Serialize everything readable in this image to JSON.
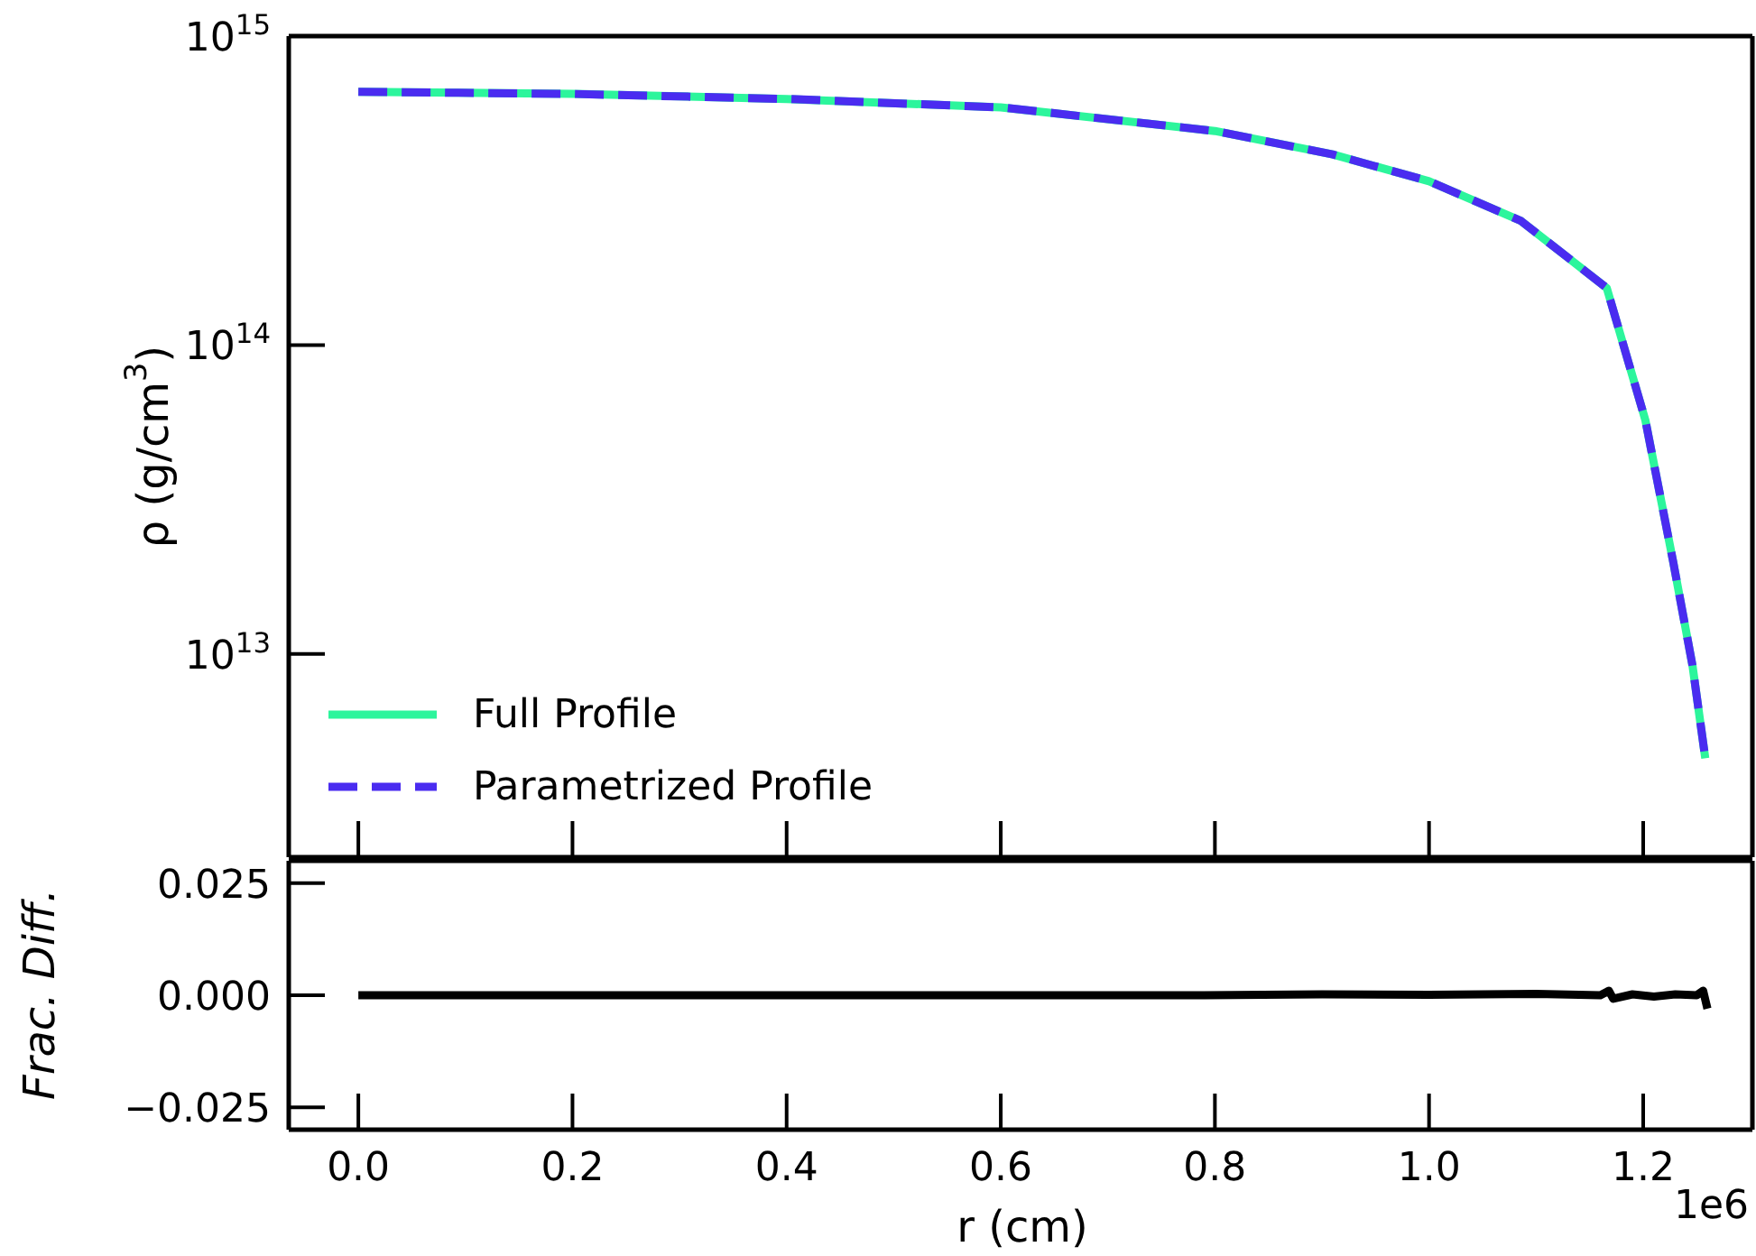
{
  "chart_data": [
    {
      "type": "line",
      "ylabel": "ρ (g/cm$^{3}$)",
      "legend": "bottom left",
      "log": "y",
      "tick_labels": "y",
      "x": [
        0,
        0.2,
        0.4,
        0.6,
        0.8,
        0.91,
        1.0,
        1.086,
        1.166,
        1.202,
        1.228,
        1.246,
        1.258
      ],
      "series": [
        {
          "name": "Full Profile",
          "color": "#2cf59c",
          "line_style": "solid",
          "values": [
            660000000000000.0,
            650000000000000.0,
            626000000000000.0,
            588000000000000.0,
            493000000000000.0,
            414000000000000.0,
            339000000000000.0,
            252000000000000.0,
            153000000000000.0,
            57200000000000.0,
            19900000000000.0,
            9200000000000.0,
            4600000000000.0
          ]
        },
        {
          "name": "Parametrized Profile",
          "color": "#4a2cf0",
          "line_style": "dashed",
          "values": [
            660000000000000.0,
            650000000000000.0,
            626000000000000.0,
            588000000000000.0,
            493000000000000.0,
            414000000000000.0,
            339000000000000.0,
            252000000000000.0,
            153000000000000.0,
            57200000000000.0,
            19900000000000.0,
            9200000000000.0,
            4600000000000.0
          ]
        }
      ],
      "xlim": [
        -0.065,
        1.302
      ],
      "xticks": [
        0,
        0.2,
        0.4,
        0.6,
        0.8,
        1.0,
        1.2
      ],
      "ylim": [
        2200000000000.0,
        1000000000000000.0
      ],
      "yticks": [
        {
          "value": 10000000000000.0,
          "label": "10$^{13}$"
        },
        {
          "value": 100000000000000.0,
          "label": "10$^{14}$"
        },
        {
          "value": 1000000000000000.0,
          "label": "10$^{15}$"
        }
      ]
    },
    {
      "type": "line",
      "xlabel": "r (cm)",
      "ylabel": "Frac. Diff.",
      "annotations": [
        "1e6"
      ],
      "x": [
        0,
        0.2,
        0.4,
        0.6,
        0.79,
        0.9,
        1.0,
        1.1,
        1.16,
        1.168,
        1.172,
        1.19,
        1.21,
        1.23,
        1.25,
        1.256,
        1.26
      ],
      "series": [
        {
          "color": "#000000",
          "values": [
            0,
            0,
            0,
            0,
            0,
            0.0002,
            0.0001,
            0.0003,
            0,
            0.001,
            -0.0008,
            0.0002,
            -0.0003,
            0.0002,
            0,
            0.001,
            -0.003
          ]
        }
      ],
      "xlim": [
        -0.065,
        1.302
      ],
      "xticks": [
        {
          "value": 0,
          "label": "0.0"
        },
        0.2,
        0.4,
        0.6,
        0.8,
        {
          "value": 1.0,
          "label": "1.0"
        },
        1.2
      ],
      "ylim": [
        -0.03,
        0.03
      ],
      "yticks": [
        {
          "value": -0.025,
          "label": "−0.025"
        },
        {
          "value": 0,
          "label": "0.000"
        },
        0.025
      ]
    }
  ]
}
